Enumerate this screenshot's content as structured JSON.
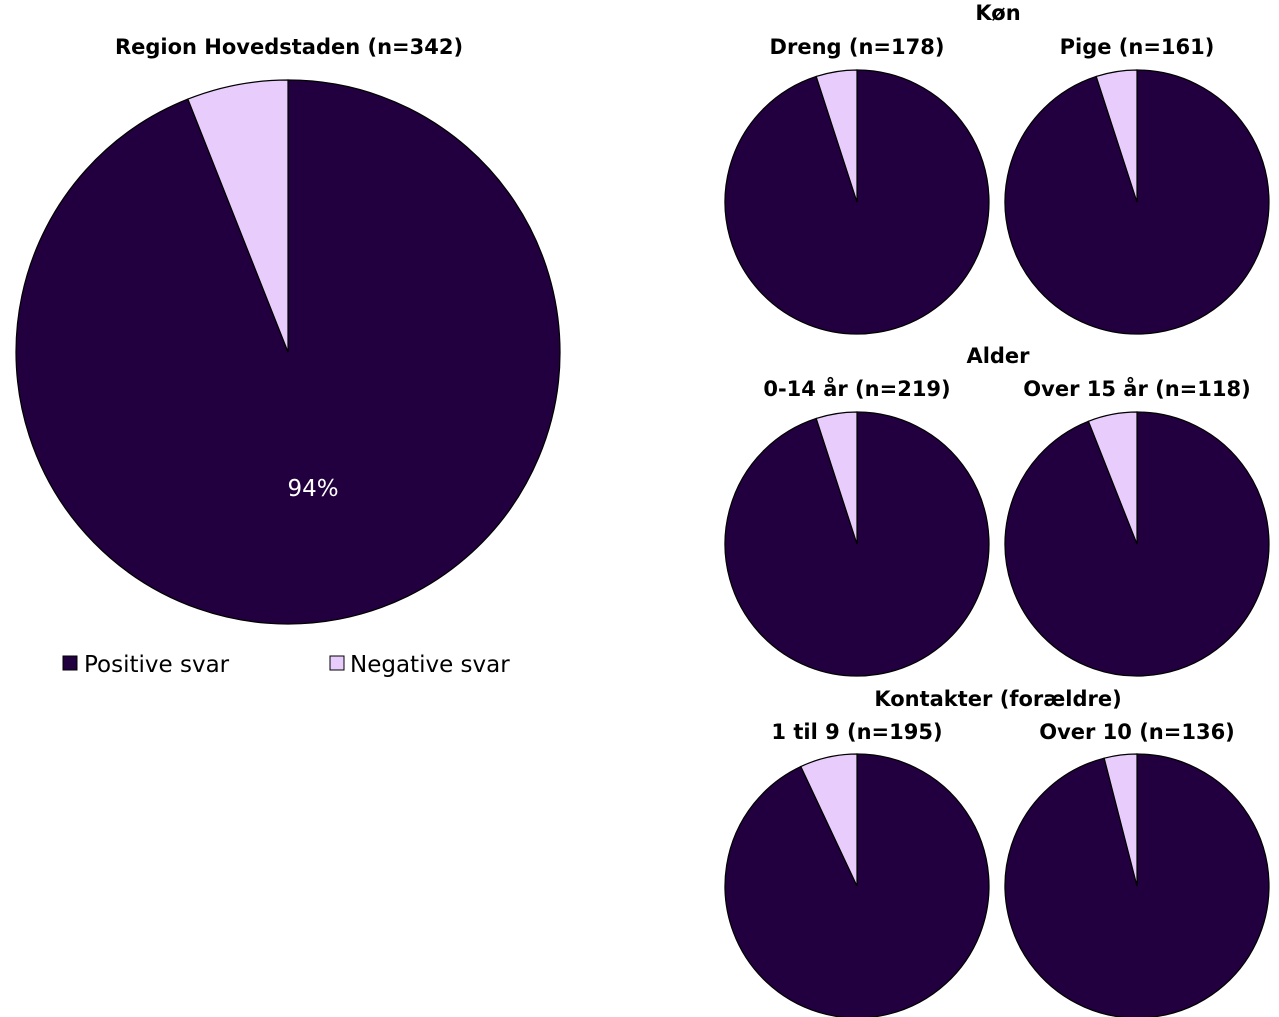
{
  "colors": {
    "positive": "#22003f",
    "negative": "#e8ccfb",
    "outline": "#000000",
    "label": "#ffffff"
  },
  "legend": {
    "positive": "Positive svar",
    "negative": "Negative svar"
  },
  "groups": {
    "gender": "Køn",
    "age": "Alder",
    "contacts": "Kontakter (forældre)"
  },
  "chart_data": [
    {
      "type": "pie",
      "title": "Region Hovedstaden (n=342)",
      "categories": [
        "Positive svar",
        "Negative svar"
      ],
      "values": [
        94,
        6
      ],
      "data_label": "94%",
      "legend": "bottom"
    },
    {
      "type": "pie",
      "group": "Køn",
      "title": "Dreng (n=178)",
      "categories": [
        "Positive svar",
        "Negative svar"
      ],
      "values": [
        95,
        5
      ]
    },
    {
      "type": "pie",
      "group": "Køn",
      "title": "Pige (n=161)",
      "categories": [
        "Positive svar",
        "Negative svar"
      ],
      "values": [
        95,
        5
      ]
    },
    {
      "type": "pie",
      "group": "Alder",
      "title": "0-14 år (n=219)",
      "categories": [
        "Positive svar",
        "Negative svar"
      ],
      "values": [
        95,
        5
      ]
    },
    {
      "type": "pie",
      "group": "Alder",
      "title": "Over 15 år (n=118)",
      "categories": [
        "Positive svar",
        "Negative svar"
      ],
      "values": [
        94,
        6
      ]
    },
    {
      "type": "pie",
      "group": "Kontakter (forældre)",
      "title": "1 til 9 (n=195)",
      "categories": [
        "Positive svar",
        "Negative svar"
      ],
      "values": [
        93,
        7
      ]
    },
    {
      "type": "pie",
      "group": "Kontakter (forældre)",
      "title": "Over 10 (n=136)",
      "categories": [
        "Positive svar",
        "Negative svar"
      ],
      "values": [
        96,
        4
      ]
    }
  ]
}
